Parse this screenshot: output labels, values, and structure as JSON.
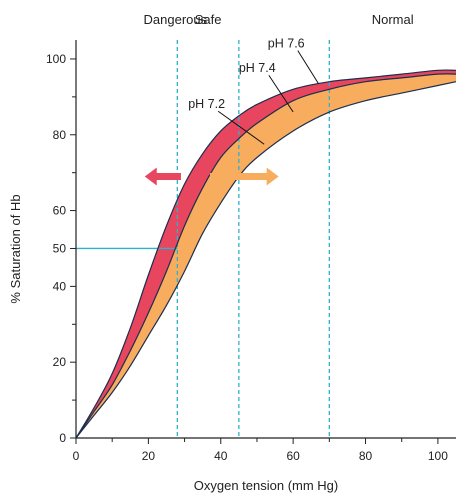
{
  "chart_data": {
    "type": "line",
    "title": "",
    "xlabel": "Oxygen tension (mm Hg)",
    "ylabel": "% Saturation of Hb",
    "xlim": [
      0,
      105
    ],
    "ylim": [
      0,
      105
    ],
    "x_ticks": [
      0,
      20,
      40,
      60,
      80,
      100
    ],
    "x_minor_ticks": [
      10,
      30,
      50,
      70,
      90
    ],
    "y_ticks": [
      0,
      20,
      40,
      50,
      60,
      80,
      100
    ],
    "y_minor_ticks": [
      10,
      30,
      70,
      90
    ],
    "grid": false,
    "zones": [
      {
        "label": "Dangerous",
        "x_max": 28
      },
      {
        "label": "Safe",
        "x_max": 45
      },
      {
        "label": "Normal",
        "x_max": 70
      }
    ],
    "reference_line": {
      "y": 50,
      "x_end": 28
    },
    "series": [
      {
        "name": "pH 7.6",
        "x": [
          0,
          5,
          10,
          15,
          20,
          25,
          30,
          35,
          40,
          45,
          50,
          60,
          70,
          80,
          90,
          100,
          105
        ],
        "values": [
          0,
          8,
          17,
          29,
          43,
          56,
          67,
          75,
          81,
          85,
          88,
          92,
          94,
          95,
          96,
          97,
          97
        ]
      },
      {
        "name": "pH 7.4",
        "x": [
          0,
          5,
          10,
          15,
          20,
          25,
          30,
          35,
          40,
          45,
          50,
          60,
          70,
          80,
          90,
          100,
          105
        ],
        "values": [
          0,
          7,
          14,
          23,
          33,
          44,
          56,
          66,
          74,
          79,
          83,
          89,
          92,
          94,
          95,
          96,
          96
        ]
      },
      {
        "name": "pH 7.2",
        "x": [
          0,
          5,
          10,
          15,
          20,
          25,
          30,
          35,
          40,
          45,
          50,
          60,
          70,
          80,
          90,
          100,
          105
        ],
        "values": [
          0,
          6,
          12,
          19,
          27,
          35,
          44,
          54,
          62,
          69,
          74,
          81,
          86,
          89,
          91,
          93,
          94
        ]
      }
    ],
    "bands": [
      {
        "upper": "pH 7.6",
        "lower": "pH 7.4",
        "color": "#e8455e"
      },
      {
        "upper": "pH 7.4",
        "lower": "pH 7.2",
        "color": "#f8ad5e"
      }
    ],
    "arrows": [
      {
        "direction": "left",
        "color": "#e8455e",
        "x_from": 29,
        "x_to": 19,
        "y": 69
      },
      {
        "direction": "right",
        "color": "#f8ad5e",
        "x_from": 37,
        "x_to": 56,
        "y": 69
      }
    ],
    "label_leaders": [
      {
        "series": "pH 7.6",
        "text_at": [
          53,
          103
        ],
        "point": [
          67,
          93.5
        ]
      },
      {
        "series": "pH 7.4",
        "text_at": [
          45,
          96.5
        ],
        "point": [
          60,
          86
        ]
      },
      {
        "series": "pH 7.2",
        "text_at": [
          31,
          87
        ],
        "point": [
          52,
          77.5
        ]
      }
    ],
    "colors": {
      "axis": "#222222",
      "curve": "#1d2e4e",
      "zone_line": "#2fb0cc",
      "reference_line": "#2fb0cc"
    }
  }
}
